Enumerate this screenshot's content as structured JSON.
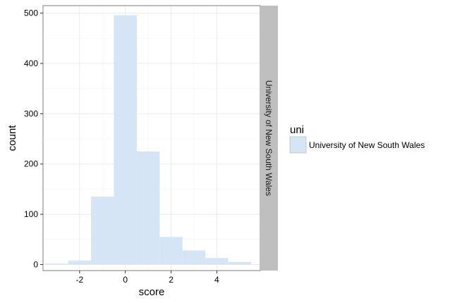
{
  "chart_data": {
    "type": "bar",
    "subtype": "histogram",
    "title": "",
    "xlabel": "score",
    "ylabel": "count",
    "xlim": [
      -3.6,
      5.9
    ],
    "ylim": [
      -12,
      515
    ],
    "x_ticks": [
      -2,
      0,
      2,
      4
    ],
    "y_ticks": [
      0,
      100,
      200,
      300,
      400,
      500
    ],
    "x_tick_labels": [
      "-2",
      "0",
      "2",
      "4"
    ],
    "y_tick_labels": [
      "0",
      "100",
      "200",
      "300",
      "400",
      "500"
    ],
    "grid": true,
    "bins": [
      {
        "x0": -3.5,
        "x1": -2.5,
        "count": 2
      },
      {
        "x0": -2.5,
        "x1": -1.5,
        "count": 8
      },
      {
        "x0": -1.5,
        "x1": -0.5,
        "count": 135
      },
      {
        "x0": -0.5,
        "x1": 0.5,
        "count": 496
      },
      {
        "x0": 0.5,
        "x1": 1.5,
        "count": 225
      },
      {
        "x0": 1.5,
        "x1": 2.5,
        "count": 55
      },
      {
        "x0": 2.5,
        "x1": 3.5,
        "count": 28
      },
      {
        "x0": 3.5,
        "x1": 4.5,
        "count": 13
      },
      {
        "x0": 4.5,
        "x1": 5.5,
        "count": 5
      }
    ],
    "facet_label": "University of New South Wales",
    "legend": {
      "title": "uni",
      "entries": [
        "University of New South Wales"
      ],
      "placement": "right"
    },
    "colors": {
      "fill": "#d5e5f5",
      "strip": "#bfbfbf",
      "panel_border": "#7f7f7f",
      "grid_major": "#ebebeb",
      "grid_minor": "#f5f5f5"
    }
  }
}
